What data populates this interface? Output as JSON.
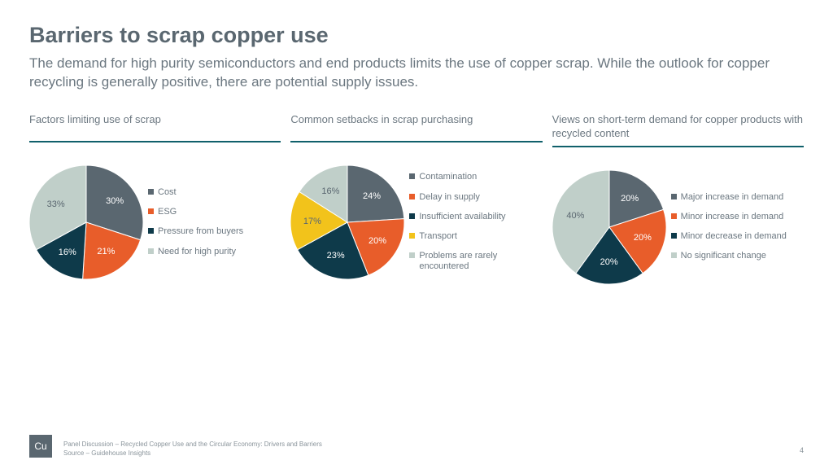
{
  "title": "Barriers to scrap copper use",
  "subtitle": "The demand for high purity semiconductors and end products limits the use of copper scrap. While the outlook for copper recycling is generally positive, there are potential supply issues.",
  "colors": {
    "title": "#5a6770",
    "subtitle": "#6b7780",
    "rule": "#10606b",
    "bg": "#ffffff"
  },
  "charts": [
    {
      "title": "Factors limiting use of scrap",
      "radius": 70,
      "slices": [
        {
          "label": "Cost",
          "value": 30,
          "color": "#5a6770",
          "textColor": "#ffffff"
        },
        {
          "label": "ESG",
          "value": 21,
          "color": "#e85d2a",
          "textColor": "#ffffff"
        },
        {
          "label": "Pressure from buyers",
          "value": 16,
          "color": "#0e3a4a",
          "textColor": "#ffffff"
        },
        {
          "label": "Need for high purity",
          "value": 33,
          "color": "#c0cfc9",
          "textColor": "#5a6770"
        }
      ]
    },
    {
      "title": "Common setbacks in scrap purchasing",
      "radius": 70,
      "slices": [
        {
          "label": "Contamination",
          "value": 24,
          "color": "#5a6770",
          "textColor": "#ffffff"
        },
        {
          "label": "Delay in supply",
          "value": 20,
          "color": "#e85d2a",
          "textColor": "#ffffff"
        },
        {
          "label": "Insufficient availability",
          "value": 23,
          "color": "#0e3a4a",
          "textColor": "#ffffff"
        },
        {
          "label": "Transport",
          "value": 17,
          "color": "#f2c31b",
          "textColor": "#5a6770"
        },
        {
          "label": "Problems are rarely encountered",
          "value": 16,
          "color": "#c0cfc9",
          "textColor": "#5a6770"
        }
      ]
    },
    {
      "title": "Views on short-term demand for copper products with recycled content",
      "radius": 70,
      "slices": [
        {
          "label": "Major increase in demand",
          "value": 20,
          "color": "#5a6770",
          "textColor": "#ffffff"
        },
        {
          "label": "Minor increase in demand",
          "value": 20,
          "color": "#e85d2a",
          "textColor": "#ffffff"
        },
        {
          "label": "Minor decrease in demand",
          "value": 20,
          "color": "#0e3a4a",
          "textColor": "#ffffff"
        },
        {
          "label": "No significant change",
          "value": 40,
          "color": "#c0cfc9",
          "textColor": "#5a6770"
        }
      ]
    }
  ],
  "footer": {
    "badge": "Cu",
    "line1": "Panel Discussion – Recycled Copper Use and the Circular Economy: Drivers and Barriers",
    "line2": "Source – Guidehouse Insights",
    "page": "4"
  }
}
